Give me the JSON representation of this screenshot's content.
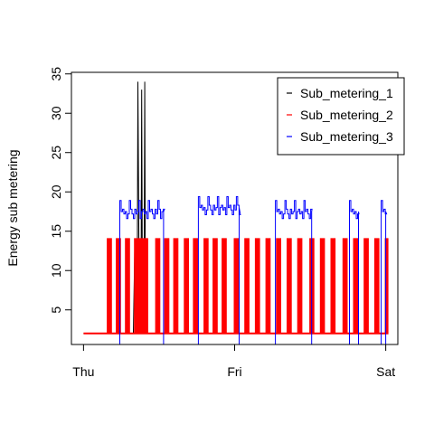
{
  "chart_data": {
    "type": "line",
    "title": "",
    "xlabel": "",
    "ylabel": "Energy sub metering",
    "x_ticks": [
      {
        "label": "Thu",
        "value": 0
      },
      {
        "label": "Fri",
        "value": 1
      },
      {
        "label": "Sat",
        "value": 2
      }
    ],
    "xlim": [
      -0.08,
      2.08
    ],
    "ylim": [
      0.6,
      35.2
    ],
    "y_ticks": [
      5,
      10,
      15,
      20,
      25,
      30,
      35
    ],
    "grid": false,
    "legend_position": "top-right",
    "series": [
      {
        "name": "Sub_metering_1",
        "color": "#000000",
        "x": [
          0.0,
          0.33,
          0.34,
          0.345,
          0.35,
          0.355,
          0.36,
          0.37,
          0.375,
          0.38,
          0.385,
          0.39,
          0.395,
          0.4,
          0.405,
          0.41,
          0.42,
          2.0
        ],
        "y": [
          2,
          2,
          14,
          3,
          14,
          3,
          34,
          3,
          14,
          3,
          33,
          3,
          14,
          3,
          34,
          3,
          2,
          2
        ]
      },
      {
        "name": "Sub_metering_2",
        "color": "#ff0000",
        "x": [
          0.0,
          2.0
        ],
        "y": [
          2,
          2
        ],
        "spikes": [
          0.16,
          0.17,
          0.22,
          0.23,
          0.28,
          0.29,
          0.34,
          0.36,
          0.37,
          0.38,
          0.4,
          0.41,
          0.48,
          0.49,
          0.54,
          0.55,
          0.6,
          0.61,
          0.67,
          0.68,
          0.73,
          0.74,
          0.8,
          0.81,
          0.86,
          0.87,
          0.92,
          0.93,
          1.0,
          1.01,
          1.07,
          1.08,
          1.14,
          1.15,
          1.21,
          1.22,
          1.28,
          1.29,
          1.35,
          1.36,
          1.42,
          1.43,
          1.5,
          1.51,
          1.57,
          1.58,
          1.64,
          1.65,
          1.72,
          1.73,
          1.79,
          1.8,
          1.86,
          1.87,
          1.93,
          1.94,
          2.0
        ],
        "spike_value": 14
      },
      {
        "name": "Sub_metering_3",
        "color": "#0000ff",
        "segments": [
          {
            "start": 0.24,
            "end": 0.53,
            "level": 17.5
          },
          {
            "start": 0.76,
            "end": 1.03,
            "level": 18
          },
          {
            "start": 1.27,
            "end": 1.51,
            "level": 17.5
          },
          {
            "start": 1.76,
            "end": 1.82,
            "level": 17.5
          },
          {
            "start": 1.97,
            "end": 2.0,
            "level": 17.5
          }
        ]
      }
    ]
  }
}
